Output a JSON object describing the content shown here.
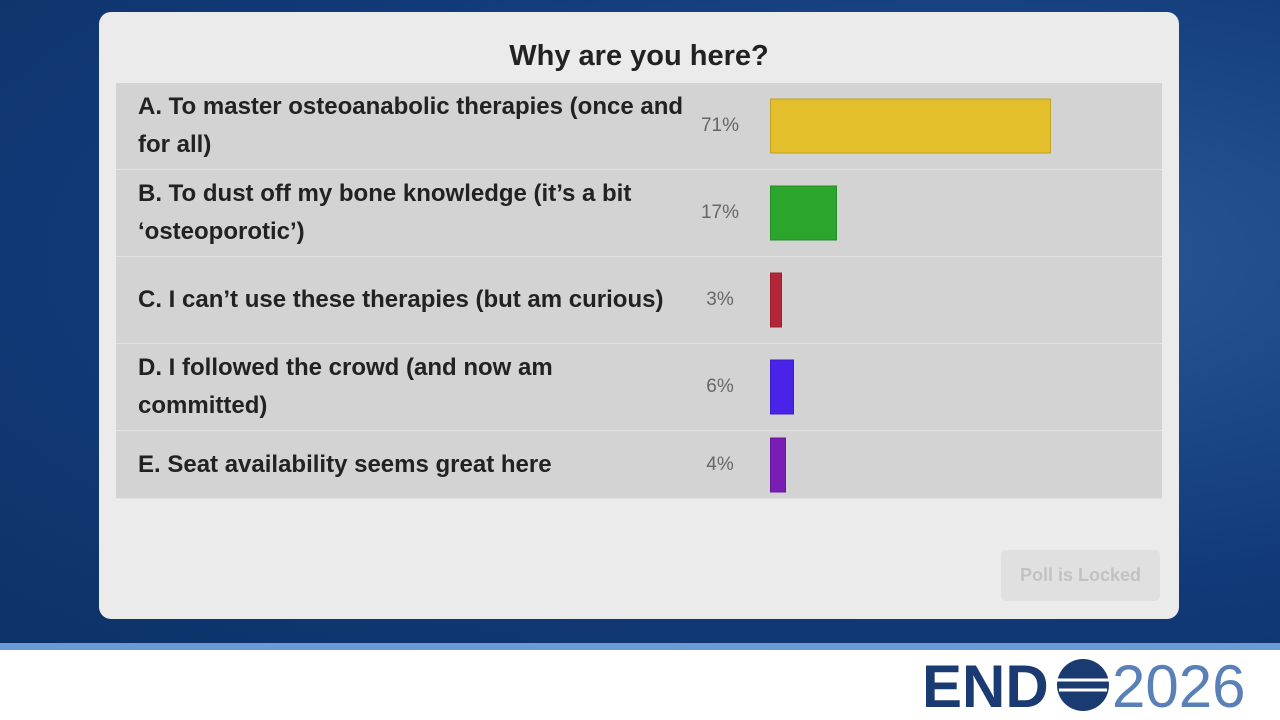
{
  "chart_data": {
    "type": "bar",
    "orientation": "horizontal",
    "title": "Why are you here?",
    "categories": [
      "A. To master osteoanabolic therapies (once and for all)",
      "B. To dust off my bone knowledge (it’s a bit ‘osteoporotic’)",
      "C. I can’t use these therapies (but am curious)",
      "D. I followed the crowd (and now am committed)",
      "E. Seat availability seems great here"
    ],
    "values": [
      71,
      17,
      3,
      6,
      4
    ],
    "value_labels": [
      "71%",
      "17%",
      "3%",
      "6%",
      "4%"
    ],
    "colors": [
      "#e2bf2b",
      "#2ca52c",
      "#b3263a",
      "#4a23e8",
      "#7a1db5"
    ],
    "xlim": [
      0,
      100
    ]
  },
  "button": "Poll is Locked",
  "logo": {
    "left": "END",
    "right": "2026"
  }
}
